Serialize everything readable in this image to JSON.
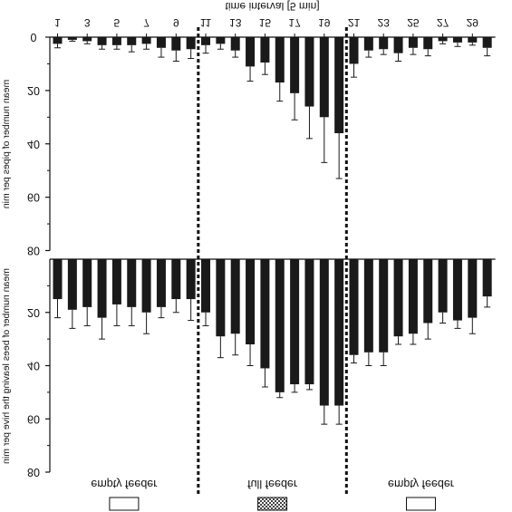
{
  "figure": {
    "mirrored": true,
    "feeder_labels": [
      "empty feeder",
      "full feeder",
      "empty feeder"
    ],
    "feeder_swatches": [
      "empty",
      "hatched",
      "empty"
    ],
    "colors": {
      "bar": "#1a1a1a",
      "axis": "#111111",
      "divider": "#111111",
      "swatch_hatch": "#444444"
    }
  },
  "chart_data": [
    {
      "type": "bar",
      "title": "",
      "xlabel": "time interval [5 min]",
      "ylabel": "mean number of pipes per min",
      "x_tick_labels": [
        "1",
        "3",
        "5",
        "7",
        "9",
        "11",
        "13",
        "15",
        "17",
        "19",
        "21",
        "23",
        "25",
        "27",
        "29"
      ],
      "ylim": [
        0,
        80
      ],
      "y_ticks": [
        0,
        20,
        40,
        60,
        80
      ],
      "y_inverted": true,
      "categories": [
        1,
        2,
        3,
        4,
        5,
        6,
        7,
        8,
        9,
        10,
        11,
        12,
        13,
        14,
        15,
        16,
        17,
        18,
        19,
        20,
        21,
        22,
        23,
        24,
        25,
        26,
        27,
        28,
        29,
        30
      ],
      "values": [
        2.5,
        1,
        1.5,
        3,
        3,
        3,
        2.5,
        4,
        5,
        4.5,
        3,
        2.5,
        5,
        11,
        9.5,
        17,
        21,
        26,
        30,
        36,
        10,
        5,
        4.5,
        6,
        4,
        4.5,
        1.5,
        2,
        2,
        4
      ],
      "errors": [
        1.5,
        0.5,
        1,
        1.5,
        1.5,
        2.5,
        2,
        3.5,
        4,
        3.5,
        3,
        2,
        2.5,
        5.5,
        4.5,
        7,
        10,
        12,
        17,
        17,
        5,
        2.5,
        2,
        3,
        2.5,
        2.5,
        1,
        1.5,
        1,
        3
      ],
      "dividers_after_category": [
        10,
        20
      ]
    },
    {
      "type": "bar",
      "title": "",
      "xlabel": "",
      "ylabel": "mean number of bees leaving the hive per min",
      "ylim": [
        0,
        80
      ],
      "y_ticks": [
        20,
        40,
        60,
        80
      ],
      "y_inverted": true,
      "categories": [
        1,
        2,
        3,
        4,
        5,
        6,
        7,
        8,
        9,
        10,
        11,
        12,
        13,
        14,
        15,
        16,
        17,
        18,
        19,
        20,
        21,
        22,
        23,
        24,
        25,
        26,
        27,
        28,
        29,
        30
      ],
      "values": [
        15,
        19,
        18,
        22,
        17,
        18,
        20,
        18,
        15,
        15,
        20,
        29,
        28,
        32,
        41,
        50,
        47,
        47,
        55,
        55,
        36,
        35,
        35,
        29,
        28,
        24,
        20,
        23,
        22,
        14
      ],
      "errors": [
        7,
        7,
        7,
        8,
        8,
        7,
        8,
        4,
        5,
        8,
        5,
        8,
        8,
        8,
        7,
        2,
        3,
        2,
        7,
        7,
        3,
        5,
        5,
        3,
        4,
        6,
        4,
        3,
        6,
        4
      ],
      "dividers_after_category": [
        10,
        20
      ]
    }
  ]
}
